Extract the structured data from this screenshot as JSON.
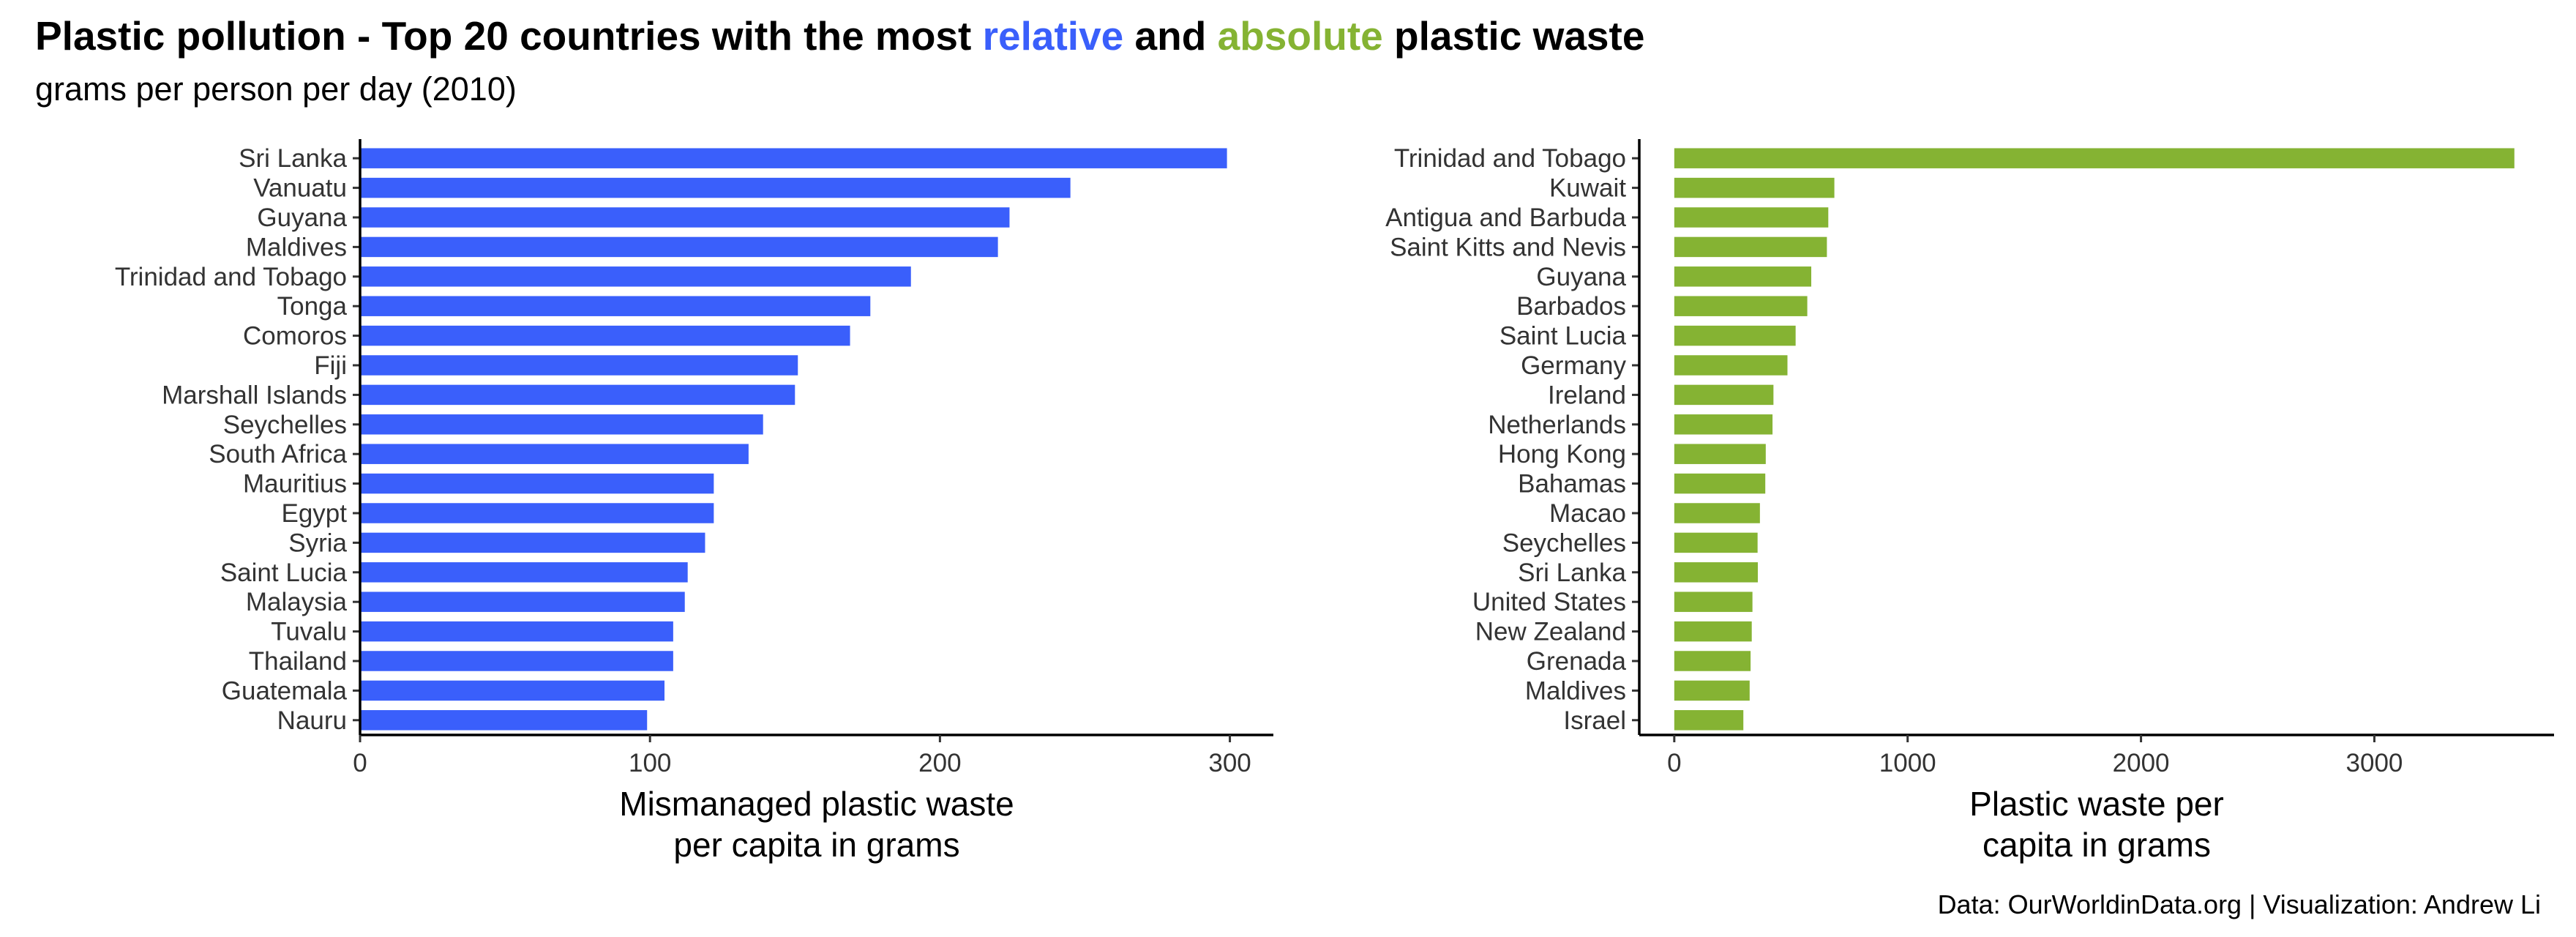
{
  "title": {
    "part1": "Plastic pollution - Top 20 countries with the most ",
    "relative": "relative",
    "mid": " and ",
    "absolute": "absolute",
    "part2": " plastic waste"
  },
  "subtitle": "grams per person per day (2010)",
  "caption": "Data: OurWorldinData.org | Visualization: Andrew Li",
  "colors": {
    "relative": "#3a5ffb",
    "absolute": "#85b333"
  },
  "chart_data": [
    {
      "type": "bar",
      "orientation": "horizontal",
      "xlabel": [
        "Mismanaged plastic waste",
        "per capita in grams"
      ],
      "ylabel": "",
      "xlim": [
        0,
        315
      ],
      "xticks": [
        0,
        100,
        200,
        300
      ],
      "categories": [
        "Sri Lanka",
        "Vanuatu",
        "Guyana",
        "Maldives",
        "Trinidad and Tobago",
        "Tonga",
        "Comoros",
        "Fiji",
        "Marshall Islands",
        "Seychelles",
        "South Africa",
        "Mauritius",
        "Egypt",
        "Syria",
        "Saint Lucia",
        "Malaysia",
        "Tuvalu",
        "Thailand",
        "Guatemala",
        "Nauru"
      ],
      "values": [
        299,
        245,
        224,
        220,
        190,
        176,
        169,
        151,
        150,
        139,
        134,
        122,
        122,
        119,
        113,
        112,
        108,
        108,
        105,
        99
      ],
      "grid": false
    },
    {
      "type": "bar",
      "orientation": "horizontal",
      "xlabel": [
        "Plastic waste per",
        "capita in grams"
      ],
      "ylabel": "",
      "xlim": [
        -150,
        3770
      ],
      "xticks": [
        0,
        1000,
        2000,
        3000
      ],
      "categories": [
        "Trinidad and Tobago",
        "Kuwait",
        "Antigua and Barbuda",
        "Saint Kitts and Nevis",
        "Guyana",
        "Barbados",
        "Saint Lucia",
        "Germany",
        "Ireland",
        "Netherlands",
        "Hong Kong",
        "Bahamas",
        "Macao",
        "Seychelles",
        "Sri Lanka",
        "United States",
        "New Zealand",
        "Grenada",
        "Maldives",
        "Israel"
      ],
      "values": [
        3600,
        686,
        660,
        654,
        587,
        570,
        520,
        485,
        425,
        421,
        392,
        390,
        367,
        357,
        358,
        335,
        332,
        327,
        323,
        296
      ],
      "grid": false
    }
  ]
}
